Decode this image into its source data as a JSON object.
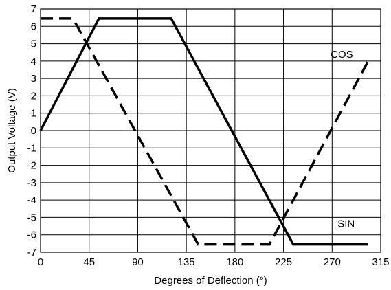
{
  "chart_data": {
    "type": "line",
    "title": "",
    "xlabel": "Degrees of Deflection (°)",
    "ylabel": "Output Voltage (V)",
    "xlim": [
      0,
      315
    ],
    "ylim": [
      -7,
      7
    ],
    "xticks": [
      "0",
      "45",
      "90",
      "135",
      "180",
      "225",
      "270",
      "315"
    ],
    "yticks": [
      "7",
      "6",
      "5",
      "4",
      "3",
      "2",
      "1",
      "0",
      "-1",
      "-2",
      "-3",
      "-4",
      "-5",
      "-6",
      "-7"
    ],
    "grid": true,
    "series": [
      {
        "name": "SIN",
        "line_style": "solid",
        "color": "#000000",
        "points": [
          [
            0,
            0
          ],
          [
            54,
            6.45
          ],
          [
            121,
            6.45
          ],
          [
            234,
            -6.55
          ],
          [
            303,
            -6.55
          ]
        ]
      },
      {
        "name": "COS",
        "line_style": "dashed",
        "color": "#000000",
        "points": [
          [
            0,
            6.45
          ],
          [
            30,
            6.45
          ],
          [
            146,
            -6.55
          ],
          [
            212,
            -6.55
          ],
          [
            303,
            3.95
          ]
        ]
      }
    ],
    "annotations": [
      {
        "text": "COS",
        "series": "COS"
      },
      {
        "text": "SIN",
        "series": "SIN"
      }
    ]
  }
}
